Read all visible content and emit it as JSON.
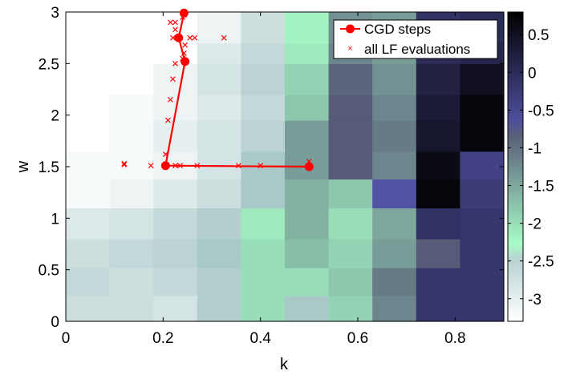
{
  "chart_data": {
    "type": "heatmap",
    "xlabel": "k",
    "ylabel": "w",
    "xlim": [
      0,
      0.9
    ],
    "ylim": [
      0,
      3
    ],
    "x_ticks": [
      "0",
      "0.2",
      "0.4",
      "0.6",
      "0.8"
    ],
    "y_ticks": [
      "0",
      "0.5",
      "1",
      "1.5",
      "2",
      "2.5",
      "3"
    ],
    "colorbar": {
      "range": [
        -3.3,
        0.8
      ],
      "ticks": [
        "0.5",
        "0",
        "-0.5",
        "-1",
        "-1.5",
        "-2",
        "-2.5",
        "-3"
      ],
      "colormap": "bone-reversed"
    },
    "grid": {
      "k_edges": [
        0,
        0.09,
        0.18,
        0.27,
        0.36,
        0.45,
        0.54,
        0.63,
        0.72,
        0.81,
        0.9
      ],
      "w_edges": [
        0,
        0.25,
        0.52,
        0.8,
        1.1,
        1.38,
        1.65,
        1.95,
        2.2,
        2.5,
        2.7,
        3.0
      ],
      "values": [
        [
          -2.7,
          -2.7,
          -2.8,
          -2.4,
          -2.0,
          -2.3,
          -1.9,
          -1.2,
          -0.2,
          -0.2
        ],
        [
          -2.6,
          -2.7,
          -2.6,
          -2.4,
          -2.0,
          -2.0,
          -1.8,
          -1.1,
          -0.2,
          -0.2
        ],
        [
          -2.7,
          -2.6,
          -2.5,
          -2.3,
          -2.0,
          -1.7,
          -1.9,
          -1.4,
          -0.8,
          -0.2
        ],
        [
          -2.9,
          -2.8,
          -2.6,
          -2.4,
          -2.1,
          -1.6,
          -2.0,
          -1.5,
          -0.1,
          -0.2
        ],
        [
          -3.2,
          -3.1,
          -2.9,
          -2.7,
          -2.3,
          -1.6,
          -1.8,
          -0.7,
          0.7,
          -0.3
        ],
        [
          -3.2,
          -3.2,
          -3.1,
          -2.8,
          -2.3,
          -1.4,
          -0.8,
          -1.2,
          0.6,
          -0.4
        ],
        [
          -3.3,
          -3.2,
          -3.0,
          -2.8,
          -2.5,
          -1.4,
          -0.8,
          -1.1,
          0.4,
          0.7
        ],
        [
          -3.3,
          -3.2,
          -3.1,
          -2.9,
          -2.6,
          -1.8,
          -0.8,
          -1.2,
          0.3,
          0.7
        ],
        [
          -3.3,
          -3.3,
          -3.1,
          -2.8,
          -2.5,
          -1.9,
          -0.9,
          -1.3,
          0.2,
          0.5
        ],
        [
          -3.3,
          -3.3,
          -3.3,
          -2.9,
          -2.6,
          -2.1,
          -1.2,
          -1.4,
          0.0,
          0.1
        ],
        [
          -3.3,
          -3.3,
          -3.3,
          -3.1,
          -2.7,
          -2.2,
          -1.3,
          -1.4,
          -0.1,
          0.0
        ]
      ]
    },
    "legend": {
      "position": "top-right",
      "entries": [
        "CGD steps",
        "all LF evaluations"
      ]
    },
    "series": [
      {
        "name": "CGD steps",
        "style": "red line with filled circles",
        "color": "#ff0000",
        "points": [
          [
            0.5,
            1.5
          ],
          [
            0.205,
            1.51
          ],
          [
            0.245,
            2.52
          ],
          [
            0.232,
            2.75
          ],
          [
            0.243,
            2.99
          ]
        ]
      },
      {
        "name": "all LF evaluations",
        "style": "red x markers",
        "color": "#ff0000",
        "points": [
          [
            0.5,
            1.55
          ],
          [
            0.4,
            1.51
          ],
          [
            0.355,
            1.51
          ],
          [
            0.27,
            1.51
          ],
          [
            0.235,
            1.51
          ],
          [
            0.225,
            1.51
          ],
          [
            0.175,
            1.51
          ],
          [
            0.12,
            1.52
          ],
          [
            0.12,
            1.53
          ],
          [
            0.205,
            1.62
          ],
          [
            0.21,
            1.95
          ],
          [
            0.215,
            2.15
          ],
          [
            0.22,
            2.35
          ],
          [
            0.225,
            2.5
          ],
          [
            0.24,
            2.55
          ],
          [
            0.243,
            2.6
          ],
          [
            0.245,
            2.68
          ],
          [
            0.255,
            2.75
          ],
          [
            0.265,
            2.75
          ],
          [
            0.325,
            2.75
          ],
          [
            0.22,
            2.75
          ],
          [
            0.225,
            2.83
          ],
          [
            0.225,
            2.9
          ],
          [
            0.215,
            2.9
          ],
          [
            0.24,
            2.95
          ],
          [
            0.243,
            2.97
          ]
        ]
      }
    ]
  }
}
